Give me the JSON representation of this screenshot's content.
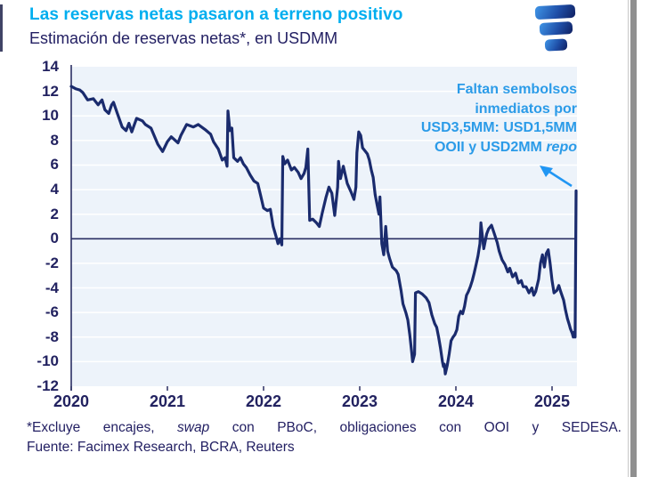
{
  "header": {
    "title": "Las reservas netas pasaron a terreno positivo",
    "subtitle": "Estimación de reservas netas*, en USDMM"
  },
  "annotation": {
    "lines": [
      "Faltan sembolsos",
      "inmediatos por",
      "USD3,5MM: USD1,5MM",
      "OOII y USD2MM"
    ],
    "italic_suffix": "repo",
    "color": "#2B9BE8"
  },
  "footnote": {
    "line1_pre": "*Excluye encajes, ",
    "line1_italic": "swap",
    "line1_post": " con PBoC, obligaciones con OOI y SEDESA.",
    "line2": "Fuente: Facimex Research, BCRA, Reuters"
  },
  "colors": {
    "title_accent": "#00AEEF",
    "navy_text": "#232063",
    "line": "#1A2B6D",
    "plot_background": "#EDF3FA",
    "gridline": "#FFFFFF",
    "axis": "#2A2F63",
    "arrow": "#2196F3"
  },
  "chart_data": {
    "type": "line",
    "title": "Las reservas netas pasaron a terreno positivo",
    "subtitle": "Estimación de reservas netas*, en USDMM",
    "xlabel": "",
    "ylabel": "USDMM",
    "ylim": [
      -12,
      14
    ],
    "ytick_step": 2,
    "yticks": [
      14,
      12,
      10,
      8,
      6,
      4,
      2,
      0,
      -2,
      -4,
      -6,
      -8,
      -10,
      -12
    ],
    "x_ticks": [
      2020,
      2021,
      2022,
      2023,
      2024,
      2025
    ],
    "x_range": [
      2020.0,
      2025.26
    ],
    "grid": "horizontal",
    "legend": "none",
    "zero_line": true,
    "series": [
      {
        "name": "Reservas netas estimadas (USDMM)",
        "points": [
          [
            2020.0,
            12.4
          ],
          [
            2020.05,
            12.2
          ],
          [
            2020.09,
            12.1
          ],
          [
            2020.12,
            11.9
          ],
          [
            2020.17,
            11.3
          ],
          [
            2020.23,
            11.4
          ],
          [
            2020.28,
            10.9
          ],
          [
            2020.32,
            11.3
          ],
          [
            2020.35,
            10.5
          ],
          [
            2020.39,
            10.2
          ],
          [
            2020.42,
            10.9
          ],
          [
            2020.44,
            11.1
          ],
          [
            2020.48,
            10.2
          ],
          [
            2020.53,
            9.1
          ],
          [
            2020.57,
            8.8
          ],
          [
            2020.6,
            9.4
          ],
          [
            2020.63,
            8.7
          ],
          [
            2020.68,
            9.8
          ],
          [
            2020.74,
            9.6
          ],
          [
            2020.77,
            9.3
          ],
          [
            2020.83,
            9.0
          ],
          [
            2020.9,
            7.7
          ],
          [
            2020.95,
            7.1
          ],
          [
            2021.0,
            7.9
          ],
          [
            2021.04,
            8.3
          ],
          [
            2021.11,
            7.8
          ],
          [
            2021.14,
            8.4
          ],
          [
            2021.2,
            9.3
          ],
          [
            2021.27,
            9.1
          ],
          [
            2021.32,
            9.3
          ],
          [
            2021.39,
            8.9
          ],
          [
            2021.45,
            8.5
          ],
          [
            2021.48,
            7.9
          ],
          [
            2021.53,
            7.3
          ],
          [
            2021.57,
            6.4
          ],
          [
            2021.6,
            6.6
          ],
          [
            2021.62,
            5.9
          ],
          [
            2021.63,
            10.4
          ],
          [
            2021.65,
            8.8
          ],
          [
            2021.67,
            9.0
          ],
          [
            2021.69,
            6.6
          ],
          [
            2021.73,
            6.3
          ],
          [
            2021.76,
            6.6
          ],
          [
            2021.79,
            6.1
          ],
          [
            2021.82,
            5.8
          ],
          [
            2021.86,
            5.2
          ],
          [
            2021.9,
            4.7
          ],
          [
            2021.94,
            4.5
          ],
          [
            2021.97,
            3.5
          ],
          [
            2022.0,
            2.5
          ],
          [
            2022.04,
            2.3
          ],
          [
            2022.07,
            2.4
          ],
          [
            2022.1,
            1.0
          ],
          [
            2022.13,
            0.2
          ],
          [
            2022.15,
            -0.4
          ],
          [
            2022.17,
            0.0
          ],
          [
            2022.19,
            -0.5
          ],
          [
            2022.2,
            6.7
          ],
          [
            2022.22,
            6.1
          ],
          [
            2022.25,
            6.4
          ],
          [
            2022.29,
            5.6
          ],
          [
            2022.32,
            5.8
          ],
          [
            2022.36,
            5.4
          ],
          [
            2022.39,
            4.9
          ],
          [
            2022.42,
            5.3
          ],
          [
            2022.44,
            5.8
          ],
          [
            2022.46,
            7.3
          ],
          [
            2022.48,
            1.5
          ],
          [
            2022.51,
            1.6
          ],
          [
            2022.55,
            1.3
          ],
          [
            2022.58,
            1.0
          ],
          [
            2022.61,
            2.1
          ],
          [
            2022.65,
            3.4
          ],
          [
            2022.68,
            4.2
          ],
          [
            2022.71,
            3.7
          ],
          [
            2022.74,
            1.9
          ],
          [
            2022.77,
            4.2
          ],
          [
            2022.78,
            6.3
          ],
          [
            2022.8,
            4.9
          ],
          [
            2022.83,
            5.9
          ],
          [
            2022.87,
            4.5
          ],
          [
            2022.91,
            3.8
          ],
          [
            2022.94,
            3.2
          ],
          [
            2022.96,
            4.2
          ],
          [
            2022.97,
            7.0
          ],
          [
            2022.99,
            8.7
          ],
          [
            2023.01,
            8.4
          ],
          [
            2023.03,
            7.4
          ],
          [
            2023.06,
            7.1
          ],
          [
            2023.08,
            6.9
          ],
          [
            2023.1,
            6.4
          ],
          [
            2023.12,
            5.6
          ],
          [
            2023.14,
            5.0
          ],
          [
            2023.16,
            3.6
          ],
          [
            2023.18,
            2.8
          ],
          [
            2023.2,
            2.0
          ],
          [
            2023.21,
            3.4
          ],
          [
            2023.23,
            -0.4
          ],
          [
            2023.25,
            -1.3
          ],
          [
            2023.27,
            1.0
          ],
          [
            2023.29,
            -1.0
          ],
          [
            2023.31,
            -1.6
          ],
          [
            2023.34,
            -2.3
          ],
          [
            2023.38,
            -2.6
          ],
          [
            2023.4,
            -2.9
          ],
          [
            2023.43,
            -4.2
          ],
          [
            2023.45,
            -5.3
          ],
          [
            2023.48,
            -6.0
          ],
          [
            2023.5,
            -6.6
          ],
          [
            2023.52,
            -7.8
          ],
          [
            2023.54,
            -9.2
          ],
          [
            2023.55,
            -10.0
          ],
          [
            2023.57,
            -9.4
          ],
          [
            2023.58,
            -4.4
          ],
          [
            2023.61,
            -4.3
          ],
          [
            2023.65,
            -4.5
          ],
          [
            2023.69,
            -4.8
          ],
          [
            2023.72,
            -5.2
          ],
          [
            2023.75,
            -6.2
          ],
          [
            2023.78,
            -6.9
          ],
          [
            2023.8,
            -7.2
          ],
          [
            2023.82,
            -8.0
          ],
          [
            2023.84,
            -8.9
          ],
          [
            2023.86,
            -10.0
          ],
          [
            2023.87,
            -10.4
          ],
          [
            2023.88,
            -10.2
          ],
          [
            2023.89,
            -11.0
          ],
          [
            2023.91,
            -10.3
          ],
          [
            2023.93,
            -9.4
          ],
          [
            2023.95,
            -8.3
          ],
          [
            2023.97,
            -8.0
          ],
          [
            2023.99,
            -7.8
          ],
          [
            2024.01,
            -7.4
          ],
          [
            2024.03,
            -6.3
          ],
          [
            2024.05,
            -5.9
          ],
          [
            2024.07,
            -6.1
          ],
          [
            2024.09,
            -5.5
          ],
          [
            2024.11,
            -4.6
          ],
          [
            2024.13,
            -4.3
          ],
          [
            2024.15,
            -3.9
          ],
          [
            2024.17,
            -3.4
          ],
          [
            2024.19,
            -2.8
          ],
          [
            2024.21,
            -2.1
          ],
          [
            2024.23,
            -1.4
          ],
          [
            2024.25,
            -0.4
          ],
          [
            2024.26,
            1.3
          ],
          [
            2024.29,
            -0.8
          ],
          [
            2024.32,
            0.4
          ],
          [
            2024.34,
            0.8
          ],
          [
            2024.37,
            1.1
          ],
          [
            2024.4,
            0.4
          ],
          [
            2024.43,
            -0.3
          ],
          [
            2024.45,
            -1.0
          ],
          [
            2024.48,
            -1.7
          ],
          [
            2024.51,
            -2.1
          ],
          [
            2024.54,
            -2.7
          ],
          [
            2024.56,
            -2.4
          ],
          [
            2024.59,
            -3.1
          ],
          [
            2024.62,
            -2.8
          ],
          [
            2024.65,
            -3.6
          ],
          [
            2024.68,
            -3.4
          ],
          [
            2024.7,
            -3.9
          ],
          [
            2024.73,
            -3.9
          ],
          [
            2024.76,
            -4.4
          ],
          [
            2024.79,
            -4.0
          ],
          [
            2024.81,
            -4.6
          ],
          [
            2024.83,
            -4.3
          ],
          [
            2024.86,
            -3.3
          ],
          [
            2024.88,
            -2.0
          ],
          [
            2024.9,
            -1.3
          ],
          [
            2024.92,
            -2.3
          ],
          [
            2024.94,
            -1.2
          ],
          [
            2024.96,
            -0.9
          ],
          [
            2024.98,
            -2.0
          ],
          [
            2025.0,
            -3.4
          ],
          [
            2025.02,
            -4.4
          ],
          [
            2025.05,
            -4.2
          ],
          [
            2025.07,
            -3.8
          ],
          [
            2025.09,
            -4.3
          ],
          [
            2025.12,
            -5.0
          ],
          [
            2025.14,
            -5.8
          ],
          [
            2025.16,
            -6.5
          ],
          [
            2025.18,
            -7.0
          ],
          [
            2025.19,
            -7.3
          ],
          [
            2025.21,
            -7.7
          ],
          [
            2025.22,
            -8.0
          ],
          [
            2025.23,
            -7.6
          ],
          [
            2025.24,
            -8.0
          ],
          [
            2025.25,
            3.9
          ]
        ]
      }
    ]
  }
}
